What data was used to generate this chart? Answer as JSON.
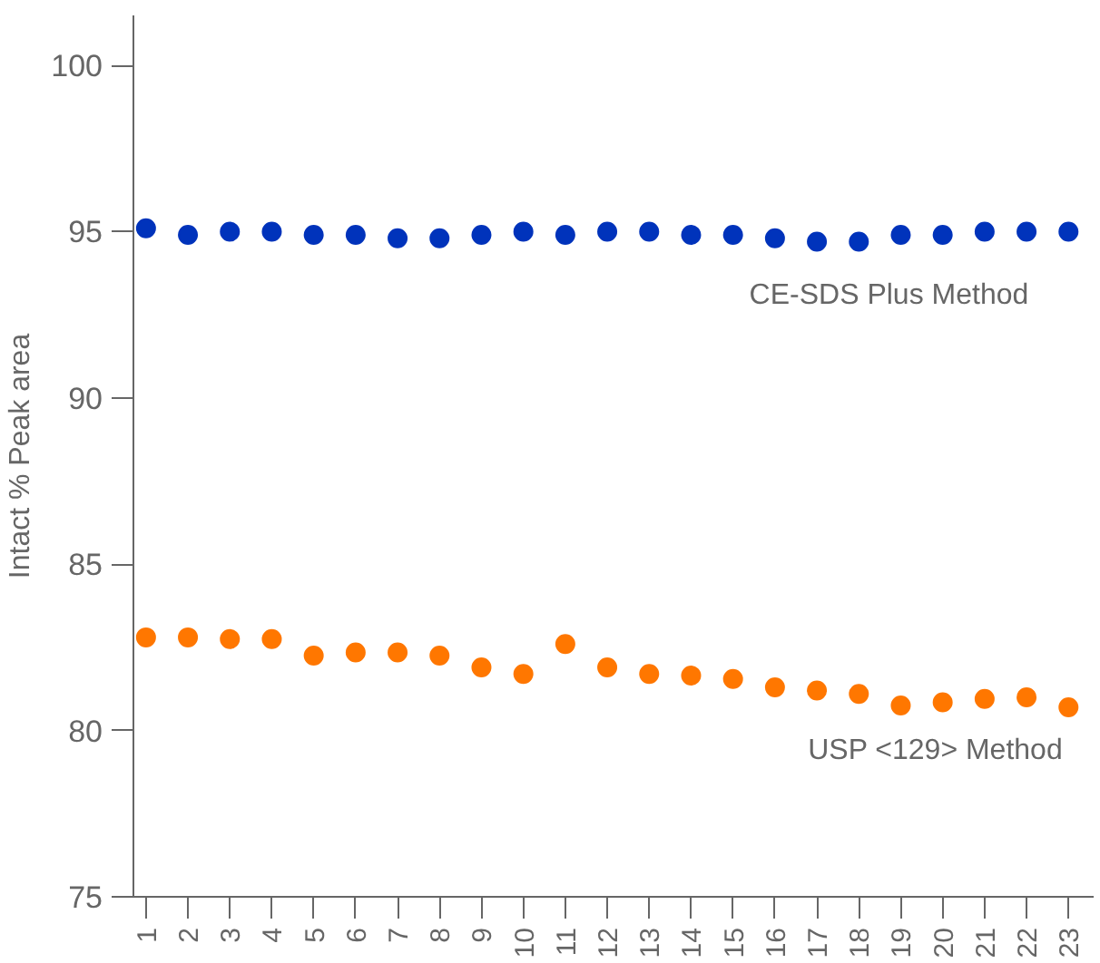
{
  "chart_data": {
    "type": "scatter",
    "ylabel": "Intact % Peak area",
    "x": [
      1,
      2,
      3,
      4,
      5,
      6,
      7,
      8,
      9,
      10,
      11,
      12,
      13,
      14,
      15,
      16,
      17,
      18,
      19,
      20,
      21,
      22,
      23
    ],
    "xlim": [
      0.7,
      23.6
    ],
    "xticks": [
      1,
      2,
      3,
      4,
      5,
      6,
      7,
      8,
      9,
      10,
      11,
      12,
      13,
      14,
      15,
      16,
      17,
      18,
      19,
      20,
      21,
      22,
      23
    ],
    "ylim": [
      75,
      101.5
    ],
    "yticks": [
      75,
      80,
      85,
      90,
      95,
      100
    ],
    "grid": false,
    "legend": false,
    "marker": "circle",
    "series": [
      {
        "name": "CE-SDS Plus Method",
        "color": "#0033bb",
        "values": [
          95.1,
          94.9,
          95.0,
          95.0,
          94.9,
          94.9,
          94.8,
          94.8,
          94.9,
          95.0,
          94.9,
          95.0,
          95.0,
          94.9,
          94.9,
          94.8,
          94.7,
          94.7,
          94.9,
          94.9,
          95.0,
          95.0,
          95.0
        ]
      },
      {
        "name": "USP <129> Method",
        "color": "#ff7700",
        "values": [
          82.8,
          82.8,
          82.75,
          82.75,
          82.25,
          82.35,
          82.35,
          82.25,
          81.9,
          81.7,
          82.6,
          81.9,
          81.7,
          81.65,
          81.55,
          81.3,
          81.2,
          81.1,
          80.75,
          80.85,
          80.95,
          81.0,
          80.7
        ]
      }
    ]
  }
}
